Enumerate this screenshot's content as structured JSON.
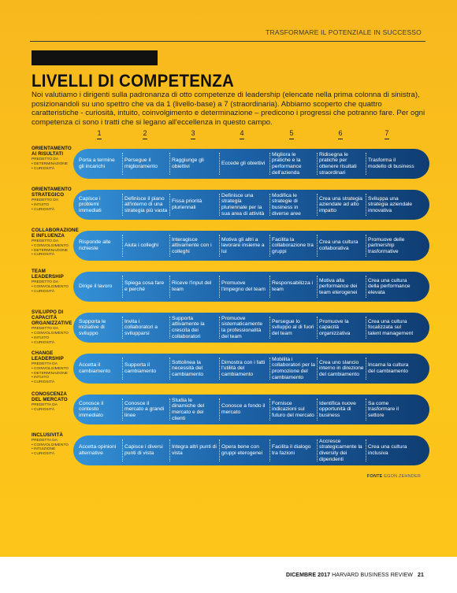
{
  "header": {
    "kicker": "TRASFORMARE IL POTENZIALE IN SUCCESSO",
    "title": "LIVELLI DI COMPETENZA",
    "intro": "Noi valutiamo i dirigenti sulla padronanza di otto competenze di leadership (elencate nella prima colonna di sinistra), posizionandoli su uno spettro che va da 1 (livello-base) a 7 (straordinaria). Abbiamo scoperto che quattro caratteristiche - curiosità, intuito, coinvolgimento e determinazione – predicono i progressi che potranno fare. Per ogni competenza ci sono i tratti che si legano all'eccellenza in questo campo."
  },
  "scale": [
    "1",
    "2",
    "3",
    "4",
    "5",
    "6",
    "7"
  ],
  "rows": [
    {
      "name": "ORIENTAMENTO AI RISULTATI",
      "predictor_label": "PREDETTO DA",
      "predictors": [
        "• DETERMINAZIONE",
        "• CURIOSITÀ"
      ],
      "levels": [
        "Porta a termine gli incarichi",
        "Persegue il miglioramento",
        "Raggiunge gli obiettivi",
        "Eccede gli obiettivi",
        "Migliora le pratiche e la performance dell'azienda",
        "Ridisegna le pratiche per ottenere risultati straordinari",
        "Trasforma il modello di business"
      ]
    },
    {
      "name": "ORIENTAMENTO STRATEGICO",
      "predictor_label": "PREDETTO DA",
      "predictors": [
        "• INTUITO",
        "• CURIOSITÀ"
      ],
      "levels": [
        "Capisce i problemi immediati",
        "Definisce il piano all'interno di una strategia più vasta",
        "Fissa priorità pluriennali",
        "Definisce una strategia pluriennale per la sua area di attività",
        "Modifica le strategie di business in diverse aree",
        "Crea una strategia aziendale ad alto impatto",
        "Sviluppa una strategia aziendale innovativa"
      ]
    },
    {
      "name": "COLLABORAZIONE E INFLUENZA",
      "predictor_label": "PREDETTO DA",
      "predictors": [
        "• COINVOLGIMENTO",
        "• DETERMINAZIONE",
        "• CURIOSITÀ"
      ],
      "levels": [
        "Risponde alle richieste",
        "Aiuta i colleghi",
        "Interagisce attivamente con i colleghi",
        "Motiva gli altri a lavorare insieme a lui",
        "Facilita la collaborazione tra gruppi",
        "Crea una cultura collaborativa",
        "Promuove delle partnership trasformative"
      ]
    },
    {
      "name": "TEAM LEADERSHIP",
      "predictor_label": "PREDETTO DA",
      "predictors": [
        "• COINVOLGIMENTO",
        "• CURIOSITÀ"
      ],
      "levels": [
        "Dirige il lavoro",
        "Spiega cosa fare e perché",
        "Riceve l'input del team",
        "Promuove l'impegno del team",
        "Responsabilizza i team",
        "Motiva alla performance dei team eterogenei",
        "Crea una cultura della performance elevata"
      ]
    },
    {
      "name": "SVILUPPO DI CAPACITÀ ORGANIZZATIVE",
      "predictor_label": "PREDETTO DA",
      "predictors": [
        "• COINVOLGIMENTO",
        "• INTUITO",
        "• CURIOSITÀ"
      ],
      "levels": [
        "Supporta le iniziative di sviluppo",
        "Invita i collaboratori a svilupparsi",
        "Supporta attivamente la crescita dei collaboratori",
        "Promuove sistematicamente la professionalità del team",
        "Persegue lo sviluppo al di fuori del team",
        "Promuove la capacità organizzativa",
        "Crea una cultura focalizzata sul talent management"
      ]
    },
    {
      "name": "CHANGE LEADERSHIP",
      "predictor_label": "PREDETTA DA",
      "predictors": [
        "• COINVOLGIMENTO",
        "• DETERMINAZIONE",
        "• INTUITO",
        "• CURIOSITÀ"
      ],
      "levels": [
        "Accetta il cambiamento",
        "Supporta il cambiamento",
        "Sottolinea la necessità del cambiamento",
        "Dimostra con i fatti l'utilità del cambiamento",
        "Mobilita i collaboratori per la promozione del cambiamento",
        "Crea uno slancio interno in direzione del cambiamento",
        "Incarna la cultura del cambiamento"
      ]
    },
    {
      "name": "CONOSCENZA DEL MERCATO",
      "predictor_label": "PREDETTA DA",
      "predictors": [
        "• CURIOSITÀ"
      ],
      "levels": [
        "Conosce il contesto immediato",
        "Conosce il mercato a grandi linee",
        "Studia le dinamiche del mercato e dei clienti",
        "Conosce a fondo il mercato",
        "Fornisce indicazioni sul futuro del mercato",
        "Identifica nuove opportunità di business",
        "Sa come trasformare il settore"
      ]
    },
    {
      "name": "INCLUSIVITÀ",
      "predictor_label": "PREDETTA DA",
      "predictors": [
        "• COINVOLGIMENTO",
        "• INTUIZIONE",
        "• CURIOSITÀ"
      ],
      "levels": [
        "Accetta opinioni alternative",
        "Capisce i diversi punti di vista",
        "Integra altri punti di vista",
        "Opera bene con gruppi eterogenei",
        "Facilita il dialogo tra fazioni",
        "Accresce strategicamente la diversity dei dipendenti",
        "Crea una cultura inclusiva"
      ]
    }
  ],
  "source": {
    "label": "FONTE",
    "text": "EGON ZEHNDER"
  },
  "footer": {
    "date": "DICEMBRE 2017",
    "publication": "HARVARD BUSINESS REVIEW",
    "page": "21"
  },
  "colors": {
    "background": "#fcc51a",
    "pill_left": "#3591d6",
    "pill_right": "#0f3d72"
  }
}
